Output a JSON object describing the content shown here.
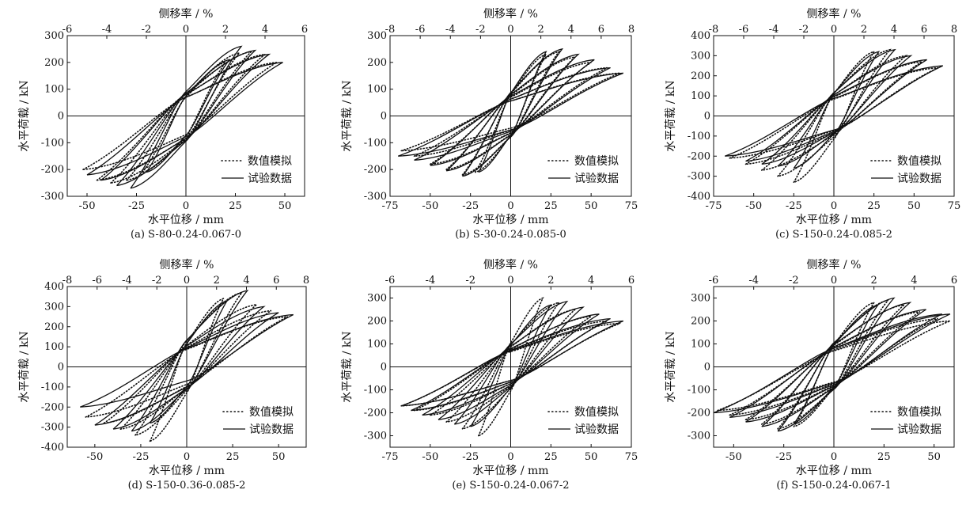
{
  "legend": {
    "sim_label": "数值模拟",
    "test_label": "试验数据"
  },
  "chart_data": [
    {
      "type": "line",
      "caption": "(a) S-80-0.24-0.067-0",
      "xlabel": "水平位移 / mm",
      "ylabel": "水平荷载 / kN",
      "x2label": "侧移率 / %",
      "xlim": [
        -60,
        60
      ],
      "ylim": [
        -300,
        300
      ],
      "x2lim": [
        -6,
        6
      ],
      "xticks": [
        -50,
        -25,
        0,
        25,
        50
      ],
      "yticks": [
        -300,
        -200,
        -100,
        0,
        100,
        200,
        300
      ],
      "x2ticks": [
        -6,
        -4,
        -2,
        0,
        2,
        4,
        6
      ],
      "legend_position": "bottom-right",
      "grid": false,
      "series": [
        {
          "name": "数值模拟",
          "style": "dotted",
          "peaks_pos": [
            [
              20,
              200
            ],
            [
              27,
              235
            ],
            [
              33,
              240
            ],
            [
              40,
              230
            ],
            [
              46,
              200
            ]
          ],
          "peaks_neg": [
            [
              -22,
              -210
            ],
            [
              -30,
              -240
            ],
            [
              -38,
              -250
            ],
            [
              -45,
              -240
            ],
            [
              -52,
              -200
            ]
          ]
        },
        {
          "name": "试验数据",
          "style": "solid",
          "peaks_pos": [
            [
              22,
              210
            ],
            [
              28,
              260
            ],
            [
              35,
              245
            ],
            [
              42,
              230
            ],
            [
              49,
              200
            ]
          ],
          "peaks_neg": [
            [
              -20,
              -210
            ],
            [
              -28,
              -270
            ],
            [
              -35,
              -260
            ],
            [
              -43,
              -240
            ],
            [
              -50,
              -220
            ]
          ]
        }
      ]
    },
    {
      "type": "line",
      "caption": "(b) S-30-0.24-0.085-0",
      "xlabel": "水平位移 / mm",
      "ylabel": "水平荷载 / kN",
      "x2label": "侧移率 / %",
      "xlim": [
        -75,
        75
      ],
      "ylim": [
        -300,
        300
      ],
      "x2lim": [
        -8,
        8
      ],
      "xticks": [
        -75,
        -50,
        -25,
        0,
        25,
        50,
        75
      ],
      "yticks": [
        -300,
        -200,
        -100,
        0,
        100,
        200,
        300
      ],
      "x2ticks": [
        -8,
        -6,
        -4,
        -2,
        0,
        2,
        4,
        6,
        8
      ],
      "legend_position": "bottom-right",
      "grid": false,
      "series": [
        {
          "name": "数值模拟",
          "style": "dotted",
          "peaks_pos": [
            [
              22,
              230
            ],
            [
              30,
              240
            ],
            [
              40,
              220
            ],
            [
              50,
              200
            ],
            [
              60,
              180
            ],
            [
              68,
              160
            ]
          ],
          "peaks_neg": [
            [
              -22,
              -210
            ],
            [
              -30,
              -220
            ],
            [
              -40,
              -200
            ],
            [
              -50,
              -180
            ],
            [
              -60,
              -150
            ],
            [
              -68,
              -130
            ]
          ]
        },
        {
          "name": "试验数据",
          "style": "solid",
          "peaks_pos": [
            [
              22,
              240
            ],
            [
              32,
              250
            ],
            [
              42,
              230
            ],
            [
              52,
              210
            ],
            [
              62,
              180
            ],
            [
              70,
              160
            ]
          ],
          "peaks_neg": [
            [
              -20,
              -210
            ],
            [
              -30,
              -225
            ],
            [
              -40,
              -205
            ],
            [
              -50,
              -185
            ],
            [
              -60,
              -165
            ],
            [
              -70,
              -150
            ]
          ]
        }
      ]
    },
    {
      "type": "line",
      "caption": "(c) S-150-0.24-0.085-2",
      "xlabel": "水平位移 / mm",
      "ylabel": "水平荷载 / kN",
      "x2label": "侧移率 / %",
      "xlim": [
        -75,
        75
      ],
      "ylim": [
        -400,
        400
      ],
      "x2lim": [
        -8,
        8
      ],
      "xticks": [
        -75,
        -50,
        -25,
        0,
        25,
        50,
        75
      ],
      "yticks": [
        -400,
        -300,
        -200,
        -100,
        0,
        100,
        200,
        300,
        400
      ],
      "x2ticks": [
        -8,
        -6,
        -4,
        -2,
        0,
        2,
        4,
        6,
        8
      ],
      "legend_position": "bottom-right",
      "grid": false,
      "series": [
        {
          "name": "数值模拟",
          "style": "dotted",
          "peaks_pos": [
            [
              25,
              320
            ],
            [
              35,
              330
            ],
            [
              45,
              300
            ],
            [
              55,
              270
            ],
            [
              65,
              240
            ]
          ],
          "peaks_neg": [
            [
              -25,
              -330
            ],
            [
              -35,
              -300
            ],
            [
              -45,
              -270
            ],
            [
              -55,
              -240
            ],
            [
              -65,
              -210
            ]
          ]
        },
        {
          "name": "试验数据",
          "style": "solid",
          "peaks_pos": [
            [
              28,
              320
            ],
            [
              38,
              330
            ],
            [
              48,
              300
            ],
            [
              58,
              280
            ],
            [
              68,
              250
            ]
          ],
          "peaks_neg": [
            [
              -25,
              -260
            ],
            [
              -35,
              -250
            ],
            [
              -45,
              -240
            ],
            [
              -55,
              -225
            ],
            [
              -68,
              -200
            ]
          ]
        }
      ]
    },
    {
      "type": "line",
      "caption": "(d) S-150-0.36-0.085-2",
      "xlabel": "水平位移 / mm",
      "ylabel": "水平荷载 / kN",
      "x2label": "侧移率 / %",
      "xlim": [
        -65,
        65
      ],
      "ylim": [
        -400,
        400
      ],
      "x2lim": [
        -8,
        8
      ],
      "xticks": [
        -50,
        -25,
        0,
        25,
        50
      ],
      "yticks": [
        -400,
        -300,
        -200,
        -100,
        0,
        100,
        200,
        300,
        400
      ],
      "x2ticks": [
        -8,
        -6,
        -4,
        -2,
        0,
        2,
        4,
        6,
        8
      ],
      "legend_position": "bottom-right",
      "grid": false,
      "series": [
        {
          "name": "数值模拟",
          "style": "dotted",
          "peaks_pos": [
            [
              20,
              340
            ],
            [
              30,
              370
            ],
            [
              38,
              310
            ],
            [
              46,
              280
            ],
            [
              55,
              250
            ]
          ],
          "peaks_neg": [
            [
              -20,
              -370
            ],
            [
              -28,
              -340
            ],
            [
              -36,
              -310
            ],
            [
              -45,
              -280
            ],
            [
              -55,
              -250
            ]
          ]
        },
        {
          "name": "试验数据",
          "style": "solid",
          "peaks_pos": [
            [
              22,
              330
            ],
            [
              33,
              380
            ],
            [
              42,
              300
            ],
            [
              50,
              270
            ],
            [
              58,
              260
            ]
          ],
          "peaks_neg": [
            [
              -20,
              -280
            ],
            [
              -30,
              -320
            ],
            [
              -40,
              -310
            ],
            [
              -50,
              -290
            ],
            [
              -58,
              -200
            ]
          ]
        }
      ]
    },
    {
      "type": "line",
      "caption": "(e) S-150-0.24-0.067-2",
      "xlabel": "水平位移 / mm",
      "ylabel": "水平荷载 / kN",
      "x2label": "侧移率 / %",
      "xlim": [
        -75,
        75
      ],
      "ylim": [
        -350,
        350
      ],
      "x2lim": [
        -6,
        6
      ],
      "xticks": [
        -75,
        -50,
        -25,
        0,
        25,
        50,
        75
      ],
      "yticks": [
        -300,
        -200,
        -100,
        0,
        100,
        200,
        300
      ],
      "x2ticks": [
        -6,
        -4,
        -2,
        0,
        2,
        4,
        6
      ],
      "legend_position": "bottom-right",
      "grid": false,
      "series": [
        {
          "name": "数值模拟",
          "style": "dotted",
          "peaks_pos": [
            [
              20,
              300
            ],
            [
              30,
              280
            ],
            [
              40,
              250
            ],
            [
              50,
              220
            ],
            [
              60,
              200
            ],
            [
              68,
              190
            ]
          ],
          "peaks_neg": [
            [
              -20,
              -300
            ],
            [
              -30,
              -270
            ],
            [
              -40,
              -240
            ],
            [
              -50,
              -210
            ],
            [
              -60,
              -190
            ],
            [
              -68,
              -170
            ]
          ]
        },
        {
          "name": "试验数据",
          "style": "solid",
          "peaks_pos": [
            [
              25,
              270
            ],
            [
              35,
              285
            ],
            [
              45,
              260
            ],
            [
              55,
              230
            ],
            [
              62,
              210
            ],
            [
              70,
              200
            ]
          ],
          "peaks_neg": [
            [
              -25,
              -260
            ],
            [
              -35,
              -250
            ],
            [
              -45,
              -230
            ],
            [
              -55,
              -210
            ],
            [
              -62,
              -190
            ],
            [
              -68,
              -170
            ]
          ]
        }
      ]
    },
    {
      "type": "line",
      "caption": "(f) S-150-0.24-0.067-1",
      "xlabel": "水平位移 / mm",
      "ylabel": "水平荷载 / kN",
      "x2label": "侧移率 / %",
      "xlim": [
        -60,
        60
      ],
      "ylim": [
        -350,
        350
      ],
      "x2lim": [
        -6,
        6
      ],
      "xticks": [
        -50,
        -25,
        0,
        25,
        50
      ],
      "yticks": [
        -300,
        -200,
        -100,
        0,
        100,
        200,
        300
      ],
      "x2ticks": [
        -6,
        -4,
        -2,
        0,
        2,
        4,
        6
      ],
      "legend_position": "bottom-right",
      "grid": false,
      "series": [
        {
          "name": "数值模拟",
          "style": "dotted",
          "peaks_pos": [
            [
              20,
              280
            ],
            [
              27,
              290
            ],
            [
              35,
              270
            ],
            [
              43,
              240
            ],
            [
              52,
              210
            ],
            [
              58,
              200
            ]
          ],
          "peaks_neg": [
            [
              -20,
              -260
            ],
            [
              -28,
              -270
            ],
            [
              -36,
              -250
            ],
            [
              -44,
              -230
            ],
            [
              -52,
              -210
            ],
            [
              -58,
              -190
            ]
          ]
        },
        {
          "name": "试验数据",
          "style": "solid",
          "peaks_pos": [
            [
              22,
              270
            ],
            [
              30,
              300
            ],
            [
              38,
              280
            ],
            [
              46,
              250
            ],
            [
              54,
              230
            ],
            [
              58,
              230
            ]
          ],
          "peaks_neg": [
            [
              -20,
              -250
            ],
            [
              -28,
              -280
            ],
            [
              -36,
              -260
            ],
            [
              -44,
              -240
            ],
            [
              -52,
              -220
            ],
            [
              -60,
              -200
            ]
          ]
        }
      ]
    }
  ]
}
